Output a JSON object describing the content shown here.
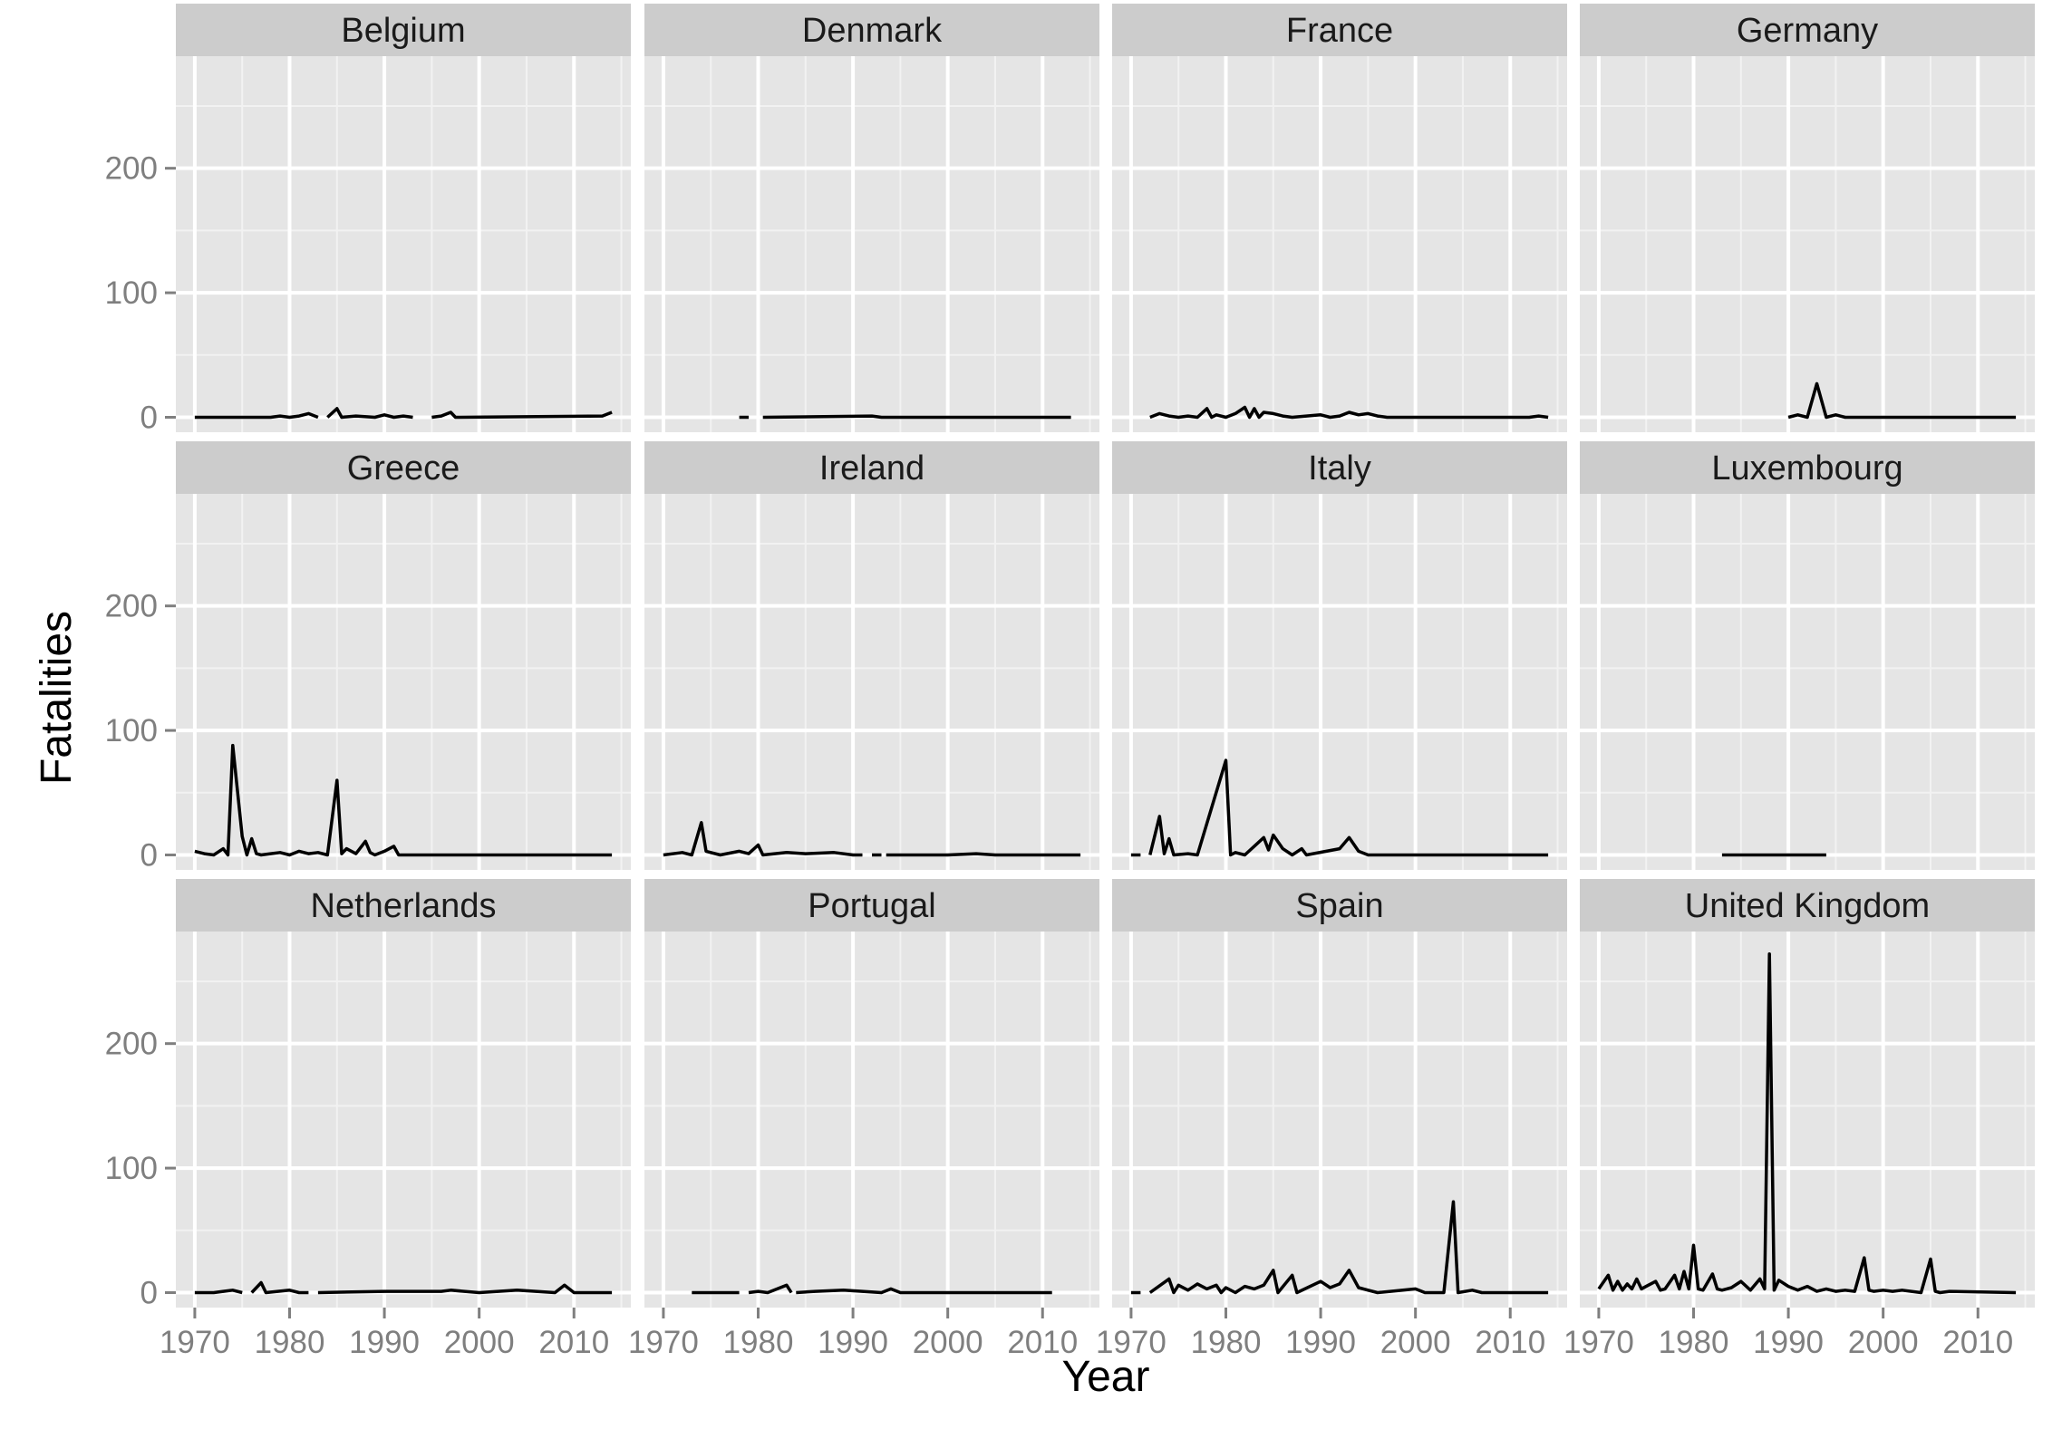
{
  "chart_data": {
    "type": "line",
    "layout": "facet grid, 3 rows x 4 columns, shared axes",
    "xlabel": "Year",
    "ylabel": "Fatalities",
    "xlim": [
      1968,
      2016
    ],
    "ylim": [
      -12,
      290
    ],
    "x_ticks": [
      1970,
      1980,
      1990,
      2000,
      2010
    ],
    "y_ticks": [
      0,
      100,
      200
    ],
    "grid": true,
    "colors": {
      "panel": "#e5e5e5",
      "strip": "#cccccc",
      "grid_major": "#ffffff",
      "grid_minor": "#f2f2f2",
      "line": "#000000"
    },
    "panels": [
      {
        "name": "Belgium",
        "segments": [
          [
            [
              1970,
              0
            ],
            [
              1978,
              0
            ],
            [
              1979,
              1
            ],
            [
              1980,
              0
            ],
            [
              1981,
              1
            ],
            [
              1982,
              3
            ],
            [
              1983,
              0
            ]
          ],
          [
            [
              1984,
              0
            ],
            [
              1985,
              7
            ],
            [
              1985.5,
              0
            ],
            [
              1987,
              1
            ],
            [
              1989,
              0
            ],
            [
              1990,
              2
            ],
            [
              1991,
              0
            ],
            [
              1992,
              1
            ],
            [
              1993,
              0
            ]
          ],
          [
            [
              1995,
              0
            ],
            [
              1996,
              1
            ],
            [
              1997,
              4
            ],
            [
              1997.5,
              0
            ],
            [
              2013,
              1
            ],
            [
              2014,
              4
            ]
          ]
        ]
      },
      {
        "name": "Denmark",
        "segments": [
          [
            [
              1978,
              0
            ],
            [
              1979,
              0
            ]
          ],
          [
            [
              1980.5,
              0
            ],
            [
              1992,
              1
            ],
            [
              1993,
              0
            ],
            [
              2013,
              0
            ]
          ]
        ]
      },
      {
        "name": "France",
        "segments": [
          [
            [
              1972,
              0
            ],
            [
              1973,
              3
            ],
            [
              1974,
              1
            ],
            [
              1975,
              0
            ],
            [
              1976,
              1
            ],
            [
              1977,
              0
            ],
            [
              1978,
              7
            ],
            [
              1978.5,
              0
            ],
            [
              1979,
              2
            ],
            [
              1980,
              0
            ],
            [
              1981,
              3
            ],
            [
              1982,
              8
            ],
            [
              1982.5,
              0
            ],
            [
              1983,
              7
            ],
            [
              1983.5,
              0
            ],
            [
              1984,
              4
            ],
            [
              1985,
              3
            ],
            [
              1986,
              1
            ],
            [
              1987,
              0
            ],
            [
              1990,
              2
            ],
            [
              1991,
              0
            ],
            [
              1992,
              1
            ],
            [
              1993,
              4
            ],
            [
              1994,
              2
            ],
            [
              1995,
              3
            ],
            [
              1996,
              1
            ],
            [
              1997,
              0
            ],
            [
              2012,
              0
            ],
            [
              2013,
              1
            ],
            [
              2014,
              0
            ]
          ]
        ]
      },
      {
        "name": "Germany",
        "segments": [
          [
            [
              1990,
              0
            ],
            [
              1991,
              2
            ],
            [
              1992,
              0
            ],
            [
              1993,
              27
            ],
            [
              1994,
              0
            ],
            [
              1995,
              2
            ],
            [
              1996,
              0
            ],
            [
              2014,
              0
            ]
          ]
        ]
      },
      {
        "name": "Greece",
        "segments": [
          [
            [
              1970,
              3
            ],
            [
              1971,
              1
            ],
            [
              1972,
              0
            ],
            [
              1973,
              5
            ],
            [
              1973.5,
              0
            ],
            [
              1974,
              88
            ],
            [
              1975,
              15
            ],
            [
              1975.5,
              0
            ],
            [
              1976,
              13
            ],
            [
              1976.5,
              1
            ],
            [
              1977,
              0
            ],
            [
              1978,
              1
            ],
            [
              1979,
              2
            ],
            [
              1980,
              0
            ],
            [
              1981,
              3
            ],
            [
              1982,
              1
            ],
            [
              1983,
              2
            ],
            [
              1984,
              0
            ],
            [
              1985,
              60
            ],
            [
              1985.5,
              1
            ],
            [
              1986,
              5
            ],
            [
              1987,
              1
            ],
            [
              1988,
              11
            ],
            [
              1988.5,
              2
            ],
            [
              1989,
              0
            ],
            [
              1990,
              3
            ],
            [
              1991,
              7
            ],
            [
              1991.5,
              0
            ],
            [
              2014,
              0
            ]
          ]
        ]
      },
      {
        "name": "Ireland",
        "segments": [
          [
            [
              1970,
              0
            ],
            [
              1972,
              2
            ],
            [
              1973,
              0
            ],
            [
              1974,
              26
            ],
            [
              1974.5,
              3
            ],
            [
              1975,
              2
            ],
            [
              1976,
              0
            ],
            [
              1978,
              3
            ],
            [
              1979,
              1
            ],
            [
              1980,
              8
            ],
            [
              1980.5,
              0
            ],
            [
              1983,
              2
            ],
            [
              1985,
              1
            ],
            [
              1988,
              2
            ],
            [
              1990,
              0
            ],
            [
              1991,
              0
            ]
          ],
          [
            [
              1992,
              0
            ],
            [
              1993,
              0
            ]
          ],
          [
            [
              1993.5,
              0
            ],
            [
              2000,
              0
            ],
            [
              2003,
              1
            ],
            [
              2005,
              0
            ],
            [
              2014,
              0
            ]
          ]
        ]
      },
      {
        "name": "Italy",
        "segments": [
          [
            [
              1970,
              0
            ],
            [
              1971,
              0
            ]
          ],
          [
            [
              1972,
              0
            ],
            [
              1973,
              31
            ],
            [
              1973.5,
              1
            ],
            [
              1974,
              13
            ],
            [
              1974.5,
              0
            ],
            [
              1976,
              1
            ],
            [
              1977,
              0
            ],
            [
              1980,
              76
            ],
            [
              1980.5,
              0
            ],
            [
              1981,
              2
            ],
            [
              1982,
              0
            ],
            [
              1984,
              14
            ],
            [
              1984.5,
              4
            ],
            [
              1985,
              16
            ],
            [
              1986,
              5
            ],
            [
              1987,
              0
            ],
            [
              1988,
              5
            ],
            [
              1988.5,
              0
            ],
            [
              1992,
              5
            ],
            [
              1993,
              14
            ],
            [
              1994,
              3
            ],
            [
              1995,
              0
            ],
            [
              2014,
              0
            ]
          ]
        ]
      },
      {
        "name": "Luxembourg",
        "segments": [
          [
            [
              1983,
              0
            ],
            [
              1994,
              0
            ]
          ]
        ]
      },
      {
        "name": "Netherlands",
        "segments": [
          [
            [
              1970,
              0
            ],
            [
              1972,
              0
            ],
            [
              1973,
              1
            ],
            [
              1974,
              2
            ],
            [
              1975,
              0
            ]
          ],
          [
            [
              1976,
              0
            ],
            [
              1977,
              8
            ],
            [
              1977.5,
              0
            ],
            [
              1980,
              2
            ],
            [
              1981,
              0
            ],
            [
              1982,
              0
            ]
          ],
          [
            [
              1983,
              0
            ],
            [
              1990,
              1
            ],
            [
              1996,
              1
            ],
            [
              1997,
              2
            ],
            [
              2000,
              0
            ],
            [
              2004,
              2
            ],
            [
              2008,
              0
            ],
            [
              2009,
              6
            ],
            [
              2010,
              0
            ],
            [
              2014,
              0
            ]
          ]
        ]
      },
      {
        "name": "Portugal",
        "segments": [
          [
            [
              1973,
              0
            ],
            [
              1978,
              0
            ]
          ],
          [
            [
              1979,
              0
            ],
            [
              1980,
              1
            ],
            [
              1981,
              0
            ],
            [
              1983,
              6
            ],
            [
              1983.5,
              0
            ]
          ],
          [
            [
              1984,
              0
            ],
            [
              1986,
              1
            ],
            [
              1989,
              2
            ],
            [
              1993,
              0
            ],
            [
              1994,
              3
            ],
            [
              1995,
              0
            ],
            [
              2011,
              0
            ]
          ]
        ]
      },
      {
        "name": "Spain",
        "segments": [
          [
            [
              1970,
              0
            ],
            [
              1971,
              0
            ]
          ],
          [
            [
              1972,
              0
            ],
            [
              1974,
              11
            ],
            [
              1974.5,
              0
            ],
            [
              1975,
              6
            ],
            [
              1976,
              2
            ],
            [
              1977,
              7
            ],
            [
              1978,
              3
            ],
            [
              1979,
              6
            ],
            [
              1979.5,
              0
            ],
            [
              1980,
              4
            ],
            [
              1981,
              0
            ],
            [
              1982,
              5
            ],
            [
              1983,
              3
            ],
            [
              1984,
              6
            ],
            [
              1985,
              18
            ],
            [
              1985.5,
              0
            ],
            [
              1987,
              14
            ],
            [
              1987.5,
              0
            ],
            [
              1990,
              9
            ],
            [
              1991,
              4
            ],
            [
              1992,
              7
            ],
            [
              1993,
              18
            ],
            [
              1994,
              4
            ],
            [
              1995,
              2
            ],
            [
              1996,
              0
            ],
            [
              2000,
              3
            ],
            [
              2001,
              0
            ],
            [
              2003,
              0
            ],
            [
              2004,
              73
            ],
            [
              2004.5,
              0
            ],
            [
              2006,
              2
            ],
            [
              2007,
              0
            ],
            [
              2014,
              0
            ]
          ]
        ]
      },
      {
        "name": "United Kingdom",
        "segments": [
          [
            [
              1970,
              3
            ],
            [
              1971,
              14
            ],
            [
              1971.5,
              2
            ],
            [
              1972,
              9
            ],
            [
              1972.5,
              2
            ],
            [
              1973,
              7
            ],
            [
              1973.5,
              3
            ],
            [
              1974,
              11
            ],
            [
              1974.5,
              3
            ],
            [
              1975,
              5
            ],
            [
              1976,
              9
            ],
            [
              1976.5,
              2
            ],
            [
              1977,
              3
            ],
            [
              1978,
              14
            ],
            [
              1978.5,
              3
            ],
            [
              1979,
              17
            ],
            [
              1979.5,
              3
            ],
            [
              1980,
              38
            ],
            [
              1980.5,
              3
            ],
            [
              1981,
              2
            ],
            [
              1982,
              15
            ],
            [
              1982.5,
              3
            ],
            [
              1983,
              2
            ],
            [
              1984,
              4
            ],
            [
              1985,
              9
            ],
            [
              1986,
              2
            ],
            [
              1987,
              11
            ],
            [
              1987.5,
              3
            ],
            [
              1988,
              272
            ],
            [
              1988.5,
              2
            ],
            [
              1989,
              10
            ],
            [
              1990,
              5
            ],
            [
              1991,
              2
            ],
            [
              1992,
              5
            ],
            [
              1993,
              1
            ],
            [
              1994,
              3
            ],
            [
              1995,
              1
            ],
            [
              1996,
              2
            ],
            [
              1997,
              1
            ],
            [
              1998,
              28
            ],
            [
              1998.5,
              2
            ],
            [
              1999,
              1
            ],
            [
              2000,
              2
            ],
            [
              2001,
              1
            ],
            [
              2002,
              2
            ],
            [
              2004,
              0
            ],
            [
              2005,
              27
            ],
            [
              2005.5,
              1
            ],
            [
              2006,
              0
            ],
            [
              2007,
              1
            ],
            [
              2014,
              0
            ]
          ]
        ]
      }
    ]
  }
}
